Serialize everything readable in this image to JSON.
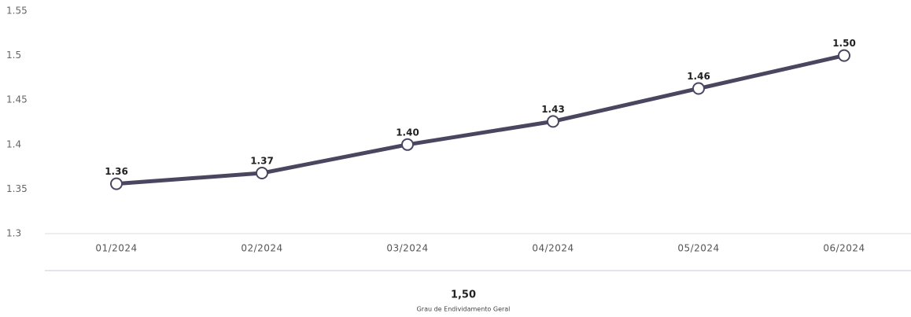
{
  "chart_data": {
    "type": "line",
    "categories": [
      "01/2024",
      "02/2024",
      "03/2024",
      "04/2024",
      "05/2024",
      "06/2024"
    ],
    "series": [
      {
        "color": "#4a4660",
        "values": [
          1.356,
          1.368,
          1.4,
          1.426,
          1.463,
          1.5
        ],
        "value_labels": [
          "1.36",
          "1.37",
          "1.40",
          "1.43",
          "1.46",
          "1.50"
        ]
      }
    ],
    "ylim": [
      1.3,
      1.55
    ],
    "yticks": [
      1.3,
      1.35,
      1.4,
      1.45,
      1.5,
      1.55
    ],
    "grid": false
  },
  "summary": {
    "value": "1,50",
    "label": "Grau de Endividamento Geral"
  }
}
